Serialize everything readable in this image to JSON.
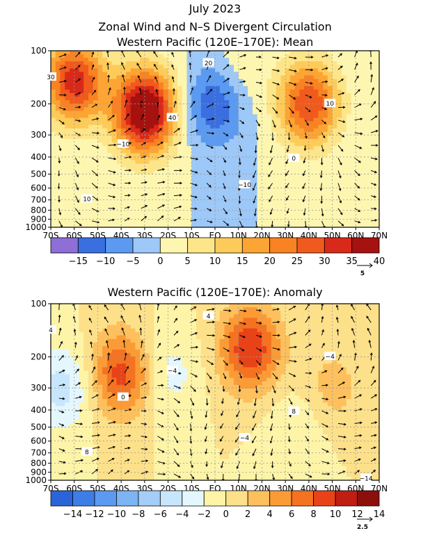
{
  "titles": {
    "line1": "July 2023",
    "line2": "Zonal Wind and N–S Divergent Circulation",
    "line3": "Western Pacific (120E–170E): Mean",
    "anomaly": "Western Pacific (120E–170E): Anomaly"
  },
  "chart_data": [
    {
      "type": "heatmap",
      "title": "Western Pacific (120E–170E): Mean",
      "x_ticks": [
        "70S",
        "60S",
        "50S",
        "40S",
        "30S",
        "20S",
        "10S",
        "EQ",
        "10N",
        "20N",
        "30N",
        "40N",
        "50N",
        "60N",
        "70N"
      ],
      "x_values": [
        -70,
        -60,
        -50,
        -40,
        -30,
        -20,
        -10,
        0,
        10,
        20,
        30,
        40,
        50,
        60,
        70
      ],
      "y_ticks": [
        "100",
        "200",
        "300",
        "400",
        "500",
        "600",
        "700",
        "800",
        "900",
        "1000"
      ],
      "y_values": [
        100,
        200,
        300,
        400,
        500,
        600,
        700,
        800,
        900,
        1000
      ],
      "xlim": [
        -70,
        70
      ],
      "ylim": [
        1000,
        100
      ],
      "y_scale": "log",
      "grid": true,
      "colorbar": {
        "colors": [
          "#8d6fd6",
          "#3a6fe0",
          "#5b9af0",
          "#9dc8f7",
          "#fdf6b0",
          "#fde58a",
          "#fdcb5a",
          "#fca534",
          "#f98223",
          "#f05a1d",
          "#d9291a",
          "#a5120f"
        ],
        "labels": [
          "−15",
          "−10",
          "−5",
          "0",
          "5",
          "10",
          "15",
          "20",
          "25",
          "30",
          "35",
          "40"
        ],
        "vector_ref": "5"
      },
      "contour_labels": [
        "30",
        "40",
        "0",
        "10",
        "20",
        "10",
        "−10",
        "−10"
      ],
      "jets": [
        {
          "lat": -30,
          "level": 220,
          "peak": 45
        },
        {
          "lat": -60,
          "level": 150,
          "peak": 33
        },
        {
          "lat": 40,
          "level": 200,
          "peak": 30
        },
        {
          "lat": 0,
          "level": 200,
          "peak": -15
        },
        {
          "lat": 10,
          "level": 130,
          "peak": 5
        }
      ]
    },
    {
      "type": "heatmap",
      "title": "Western Pacific (120E–170E): Anomaly",
      "x_ticks": [
        "70S",
        "60S",
        "50S",
        "40S",
        "30S",
        "20S",
        "10S",
        "EQ",
        "10N",
        "20N",
        "30N",
        "40N",
        "50N",
        "60N",
        "70N"
      ],
      "x_values": [
        -70,
        -60,
        -50,
        -40,
        -30,
        -20,
        -10,
        0,
        10,
        20,
        30,
        40,
        50,
        60,
        70
      ],
      "y_ticks": [
        "100",
        "200",
        "300",
        "400",
        "500",
        "600",
        "700",
        "800",
        "900",
        "1000"
      ],
      "y_values": [
        100,
        200,
        300,
        400,
        500,
        600,
        700,
        800,
        900,
        1000
      ],
      "xlim": [
        -70,
        70
      ],
      "ylim": [
        1000,
        100
      ],
      "y_scale": "log",
      "grid": true,
      "colorbar": {
        "colors": [
          "#2a64d8",
          "#3d7ee6",
          "#5b9af0",
          "#7cb4f4",
          "#a4cdf7",
          "#c8e6fb",
          "#e4f7ff",
          "#fdf4a8",
          "#fde08a",
          "#fdc05c",
          "#fb9b36",
          "#f57221",
          "#e84318",
          "#c01d13",
          "#8c0f0c"
        ],
        "labels": [
          "−14",
          "−12",
          "−10",
          "−8",
          "−6",
          "−4",
          "−2",
          "0",
          "2",
          "4",
          "6",
          "8",
          "10",
          "12",
          "14"
        ],
        "vector_ref": "2.5"
      },
      "contour_labels": [
        "4",
        "−4",
        "8",
        "8",
        "4",
        "−4",
        "0",
        "−4",
        "−14"
      ],
      "jets": [
        {
          "lat": -40,
          "level": 250,
          "peak": 9
        },
        {
          "lat": 15,
          "level": 180,
          "peak": 10
        },
        {
          "lat": -65,
          "level": 300,
          "peak": -5
        },
        {
          "lat": -20,
          "level": 250,
          "peak": -3
        },
        {
          "lat": 50,
          "level": 300,
          "peak": 3
        },
        {
          "lat": 35,
          "level": 500,
          "peak": -2
        }
      ]
    }
  ]
}
